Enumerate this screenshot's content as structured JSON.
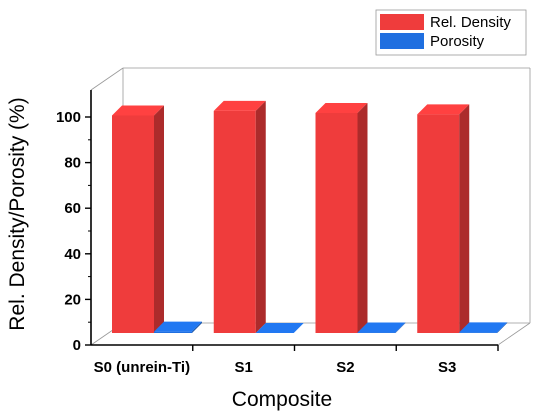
{
  "chart_data": {
    "type": "bar",
    "style": "3d",
    "categories": [
      "S0 (unrein-Ti)",
      "S1",
      "S2",
      "S3"
    ],
    "series": [
      {
        "name": "Rel. Density",
        "values": [
          99.8,
          101.8,
          100.9,
          100.3
        ],
        "color": "#ef3c3c"
      },
      {
        "name": "Porosity",
        "values": [
          0.6,
          0.0,
          0.2,
          0.3
        ],
        "color": "#1f6fe0"
      }
    ],
    "xlabel": "Composite",
    "ylabel": "Rel. Density/Porosity (%)",
    "ylim": [
      0,
      110
    ],
    "yticks": [
      0,
      20,
      40,
      60,
      80,
      100
    ],
    "grid": false,
    "legend_position": "top-right"
  }
}
